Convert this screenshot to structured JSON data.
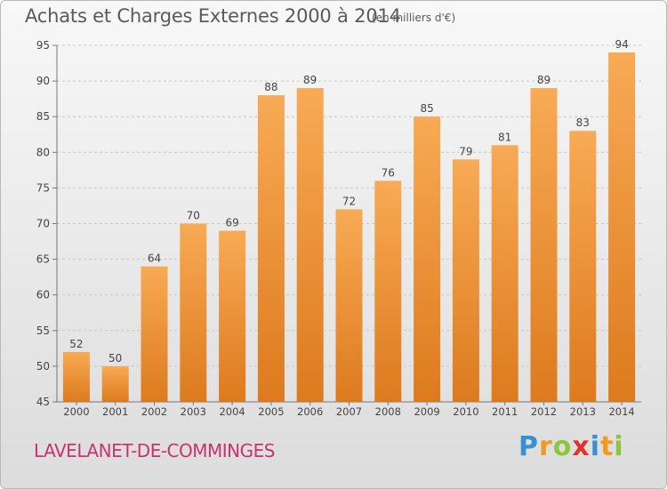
{
  "title": "Achats et Charges Externes 2000 à 2014",
  "subtitle": "(en milliers d'€)",
  "commune": "LAVELANET-DE-COMMINGES",
  "logo": {
    "letters": [
      "P",
      "r",
      "o",
      "x",
      "i",
      "t",
      "i"
    ],
    "colors": [
      "#3a8fd0",
      "#f39a1e",
      "#8cc63f",
      "#e2312d",
      "#3a8fd0",
      "#f39a1e",
      "#8cc63f"
    ]
  },
  "colors": {
    "bar_light": "#f8aa55",
    "bar_dark": "#dd7a1e",
    "axis": "#777777",
    "grid": "#c8c8c8",
    "text": "#444444",
    "commune": "#c8336e"
  },
  "chart_data": {
    "type": "bar",
    "title": "Achats et Charges Externes 2000 à 2014",
    "subtitle": "(en milliers d'€)",
    "categories": [
      "2000",
      "2001",
      "2002",
      "2003",
      "2004",
      "2005",
      "2006",
      "2007",
      "2008",
      "2009",
      "2010",
      "2011",
      "2012",
      "2013",
      "2014"
    ],
    "values": [
      52,
      50,
      64,
      70,
      69,
      88,
      89,
      72,
      76,
      85,
      79,
      81,
      89,
      83,
      94
    ],
    "ylim": [
      45,
      95
    ],
    "yticks": [
      45,
      50,
      55,
      60,
      65,
      70,
      75,
      80,
      85,
      90,
      95
    ],
    "grid": true,
    "xlabel": "",
    "ylabel": ""
  }
}
